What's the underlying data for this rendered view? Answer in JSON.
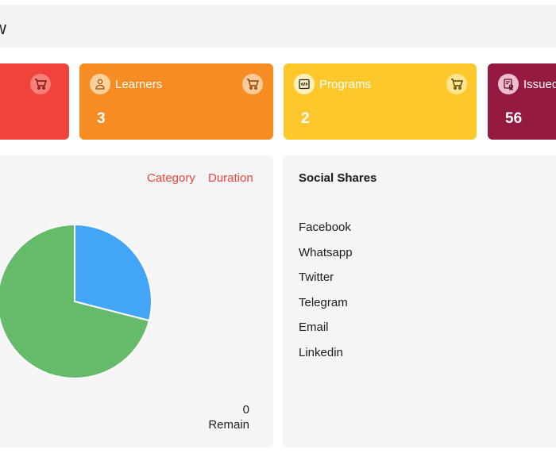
{
  "header": {
    "title": "w"
  },
  "cards": [
    {
      "color": "#f0433a",
      "icon": "cart-icon"
    },
    {
      "label": "Learners",
      "value": "3",
      "color": "#f78c22",
      "icon": "learner-icon"
    },
    {
      "label": "Programs",
      "value": "2",
      "color": "#fec82c",
      "icon": "code-icon"
    },
    {
      "label": "Issued",
      "value": "56",
      "color": "#951a40",
      "icon": "certificate-icon"
    }
  ],
  "chart_panel": {
    "toggles": [
      "Category",
      "Duration"
    ],
    "remain_count": "0",
    "remain_label": "Remain"
  },
  "chart_data": {
    "type": "pie",
    "values": [
      29,
      71
    ],
    "colors": [
      "#42a5f5",
      "#66bb6a"
    ]
  },
  "social": {
    "title": "Social Shares",
    "items": [
      "Facebook",
      "Whatsapp",
      "Twitter",
      "Telegram",
      "Email",
      "Linkedin"
    ]
  }
}
